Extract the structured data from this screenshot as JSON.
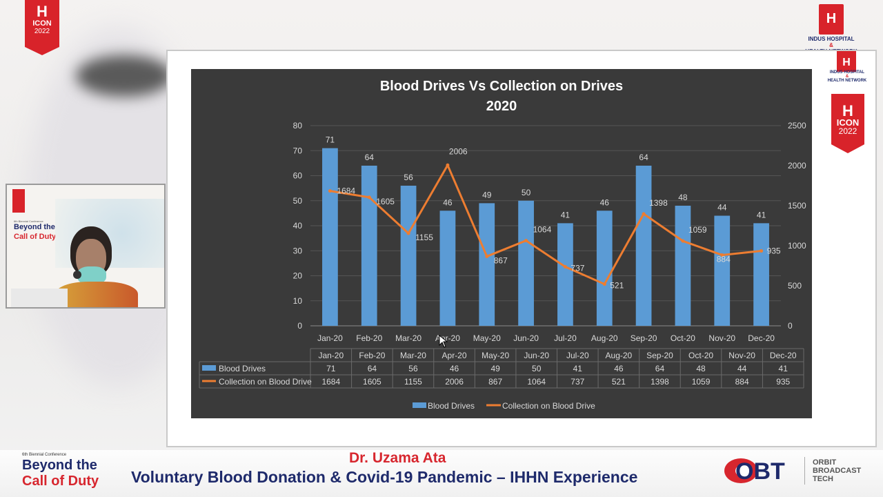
{
  "branding": {
    "logo_mark": "H",
    "logo_word": "ICON",
    "logo_year": "2022",
    "hospital_line1": "INDUS HOSPITAL",
    "hospital_amp": "&",
    "hospital_line2": "HEALTH NETWORK"
  },
  "colors": {
    "brand_red": "#d8232a",
    "navy": "#1e2a6b",
    "bar_blue": "#5b9bd5",
    "line_orange": "#ed7d31",
    "chart_bg": "#3a3a3a"
  },
  "webcam": {
    "conf_small": "6th Biennial Conference",
    "title1": "Beyond the",
    "title2": "Call of Duty"
  },
  "lower_third": {
    "speaker": "Dr. Uzama Ata",
    "talk_title": "Voluntary Blood Donation & Covid-19 Pandemic – IHHN Experience",
    "conf_small": "6th Biennial Conference",
    "conf_line1": "Beyond the",
    "conf_line2": "Call of Duty",
    "broadcaster_logo": "OBT",
    "broadcaster_line1": "ORBIT",
    "broadcaster_line2": "BROADCAST",
    "broadcaster_line3": "TECH"
  },
  "chart_data": {
    "type": "bar",
    "title_line1": "Blood Drives Vs Collection on Drives",
    "title_line2": "2020",
    "categories": [
      "Jan-20",
      "Feb-20",
      "Mar-20",
      "Apr-20",
      "May-20",
      "Jun-20",
      "Jul-20",
      "Aug-20",
      "Sep-20",
      "Oct-20",
      "Nov-20",
      "Dec-20"
    ],
    "series": [
      {
        "name": "Blood Drives",
        "type": "bar",
        "axis": "left",
        "color": "#5b9bd5",
        "values": [
          71,
          64,
          56,
          46,
          49,
          50,
          41,
          46,
          64,
          48,
          44,
          41
        ]
      },
      {
        "name": "Collection on Blood Drive",
        "type": "line",
        "axis": "right",
        "color": "#ed7d31",
        "values": [
          1684,
          1605,
          1155,
          2006,
          867,
          1064,
          737,
          521,
          1398,
          1059,
          884,
          935
        ]
      }
    ],
    "ylim_left": [
      0,
      80
    ],
    "yticks_left": [
      0,
      10,
      20,
      30,
      40,
      50,
      60,
      70,
      80
    ],
    "ylim_right": [
      0,
      2500
    ],
    "yticks_right": [
      0,
      500,
      1000,
      1500,
      2000,
      2500
    ],
    "grid": true,
    "legend_position": "bottom",
    "data_table": true
  }
}
